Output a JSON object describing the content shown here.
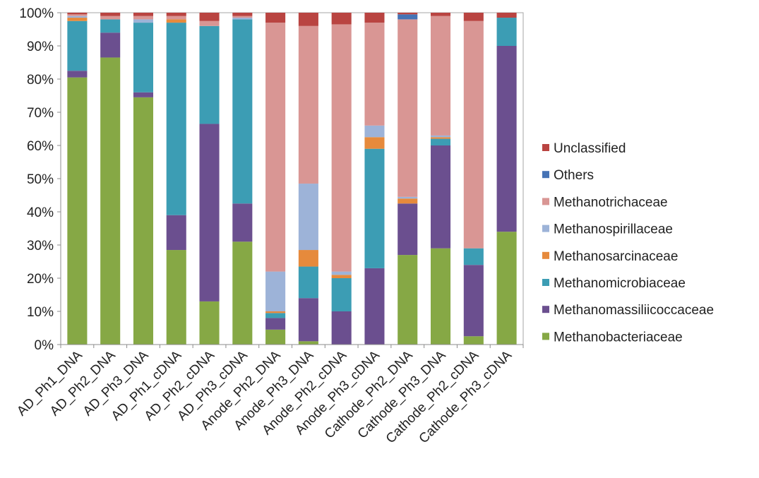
{
  "chart_data": {
    "type": "bar",
    "stacked": true,
    "percent": true,
    "ylim": [
      0,
      100
    ],
    "y_ticks": [
      "0%",
      "10%",
      "20%",
      "30%",
      "40%",
      "50%",
      "60%",
      "70%",
      "80%",
      "90%",
      "100%"
    ],
    "grid": false,
    "legend_position": "right",
    "categories": [
      "AD_Ph1_DNA",
      "AD_Ph2_DNA",
      "AD_Ph3_DNA",
      "AD_Ph1_cDNA",
      "AD_Ph2_cDNA",
      "AD_Ph3_cDNA",
      "Anode_Ph2_DNA",
      "Anode_Ph3_DNA",
      "Anode_Ph2_cDNA",
      "Anode_Ph3_cDNA",
      "Cathode_Ph2_DNA",
      "Cathode_Ph3_DNA",
      "Cathode_Ph2_cDNA",
      "Cathode_Ph3_cDNA"
    ],
    "series": [
      {
        "name": "Methanobacteriaceae",
        "color": "#86a845",
        "values": [
          80.5,
          86.5,
          74.5,
          28.5,
          13,
          31,
          4.5,
          1,
          0,
          0,
          27,
          29,
          2.5,
          34
        ]
      },
      {
        "name": "Methanomassiliicoccaceae",
        "color": "#6b4f8f",
        "values": [
          2,
          7.5,
          1.5,
          10.5,
          53.5,
          11.5,
          3.5,
          13,
          10,
          23,
          15.5,
          31,
          21.5,
          56
        ]
      },
      {
        "name": "Methanomicrobiaceae",
        "color": "#3c9db4",
        "values": [
          15,
          4,
          21,
          58,
          29.5,
          55.5,
          1.5,
          9.5,
          10,
          36,
          0,
          2,
          5,
          8.5
        ]
      },
      {
        "name": "Methanosarcinaceae",
        "color": "#e68a3c",
        "values": [
          1,
          0,
          0,
          1,
          0,
          0,
          0.5,
          5,
          1,
          3.5,
          1.5,
          0.5,
          0,
          0
        ]
      },
      {
        "name": "Methanospirillaceae",
        "color": "#9db3d8",
        "values": [
          0.5,
          0,
          1,
          0,
          0,
          0.5,
          12,
          20,
          1,
          3.5,
          0.5,
          0.5,
          0,
          0
        ]
      },
      {
        "name": "Methanotrichaceae",
        "color": "#d99694",
        "values": [
          0.5,
          1,
          1,
          1,
          1.5,
          0.5,
          75,
          47.5,
          74.5,
          31,
          53.5,
          36,
          68.5,
          0
        ]
      },
      {
        "name": "Others",
        "color": "#4673b5",
        "values": [
          0,
          0,
          0,
          0,
          0,
          0,
          0,
          0,
          0,
          0,
          1.5,
          0,
          0,
          0
        ]
      },
      {
        "name": "Unclassified",
        "color": "#b94441",
        "values": [
          0.5,
          1,
          1,
          1,
          2.5,
          1,
          3,
          4,
          3.5,
          3,
          0.5,
          1,
          2.5,
          1.5
        ]
      }
    ]
  }
}
